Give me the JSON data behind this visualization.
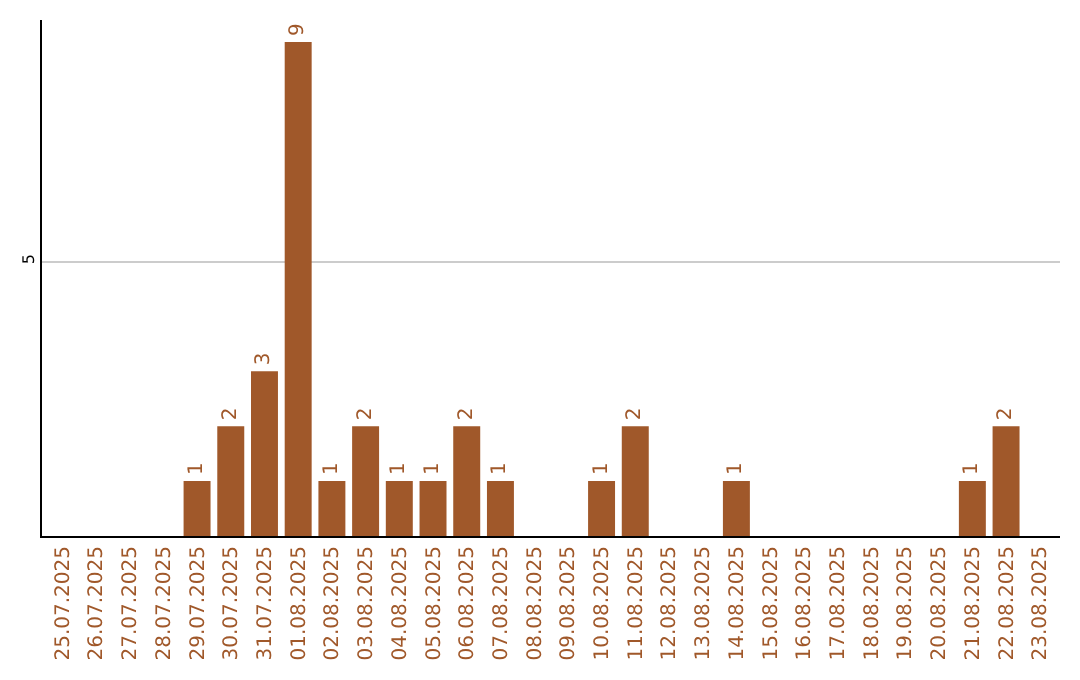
{
  "chart_data": {
    "type": "bar",
    "categories": [
      "25.07.2025",
      "26.07.2025",
      "27.07.2025",
      "28.07.2025",
      "29.07.2025",
      "30.07.2025",
      "31.07.2025",
      "01.08.2025",
      "02.08.2025",
      "03.08.2025",
      "04.08.2025",
      "05.08.2025",
      "06.08.2025",
      "07.08.2025",
      "08.08.2025",
      "09.08.2025",
      "10.08.2025",
      "11.08.2025",
      "12.08.2025",
      "13.08.2025",
      "14.08.2025",
      "15.08.2025",
      "16.08.2025",
      "17.08.2025",
      "18.08.2025",
      "19.08.2025",
      "20.08.2025",
      "21.08.2025",
      "22.08.2025",
      "23.08.2025"
    ],
    "values": [
      0,
      0,
      0,
      0,
      1,
      2,
      3,
      9,
      1,
      2,
      1,
      1,
      2,
      1,
      0,
      0,
      1,
      2,
      0,
      0,
      1,
      0,
      0,
      0,
      0,
      0,
      0,
      1,
      2,
      0
    ],
    "value_labels": [
      null,
      null,
      null,
      null,
      "1",
      "2",
      "3",
      "9",
      "1",
      "2",
      "1",
      "1",
      "2",
      "1",
      null,
      null,
      "1",
      "2",
      null,
      null,
      "1",
      null,
      null,
      null,
      null,
      null,
      null,
      "1",
      "2",
      null
    ],
    "color": "#a0582a",
    "ylim": [
      0,
      9.4
    ],
    "yticks": [
      5
    ],
    "grid": "y"
  }
}
